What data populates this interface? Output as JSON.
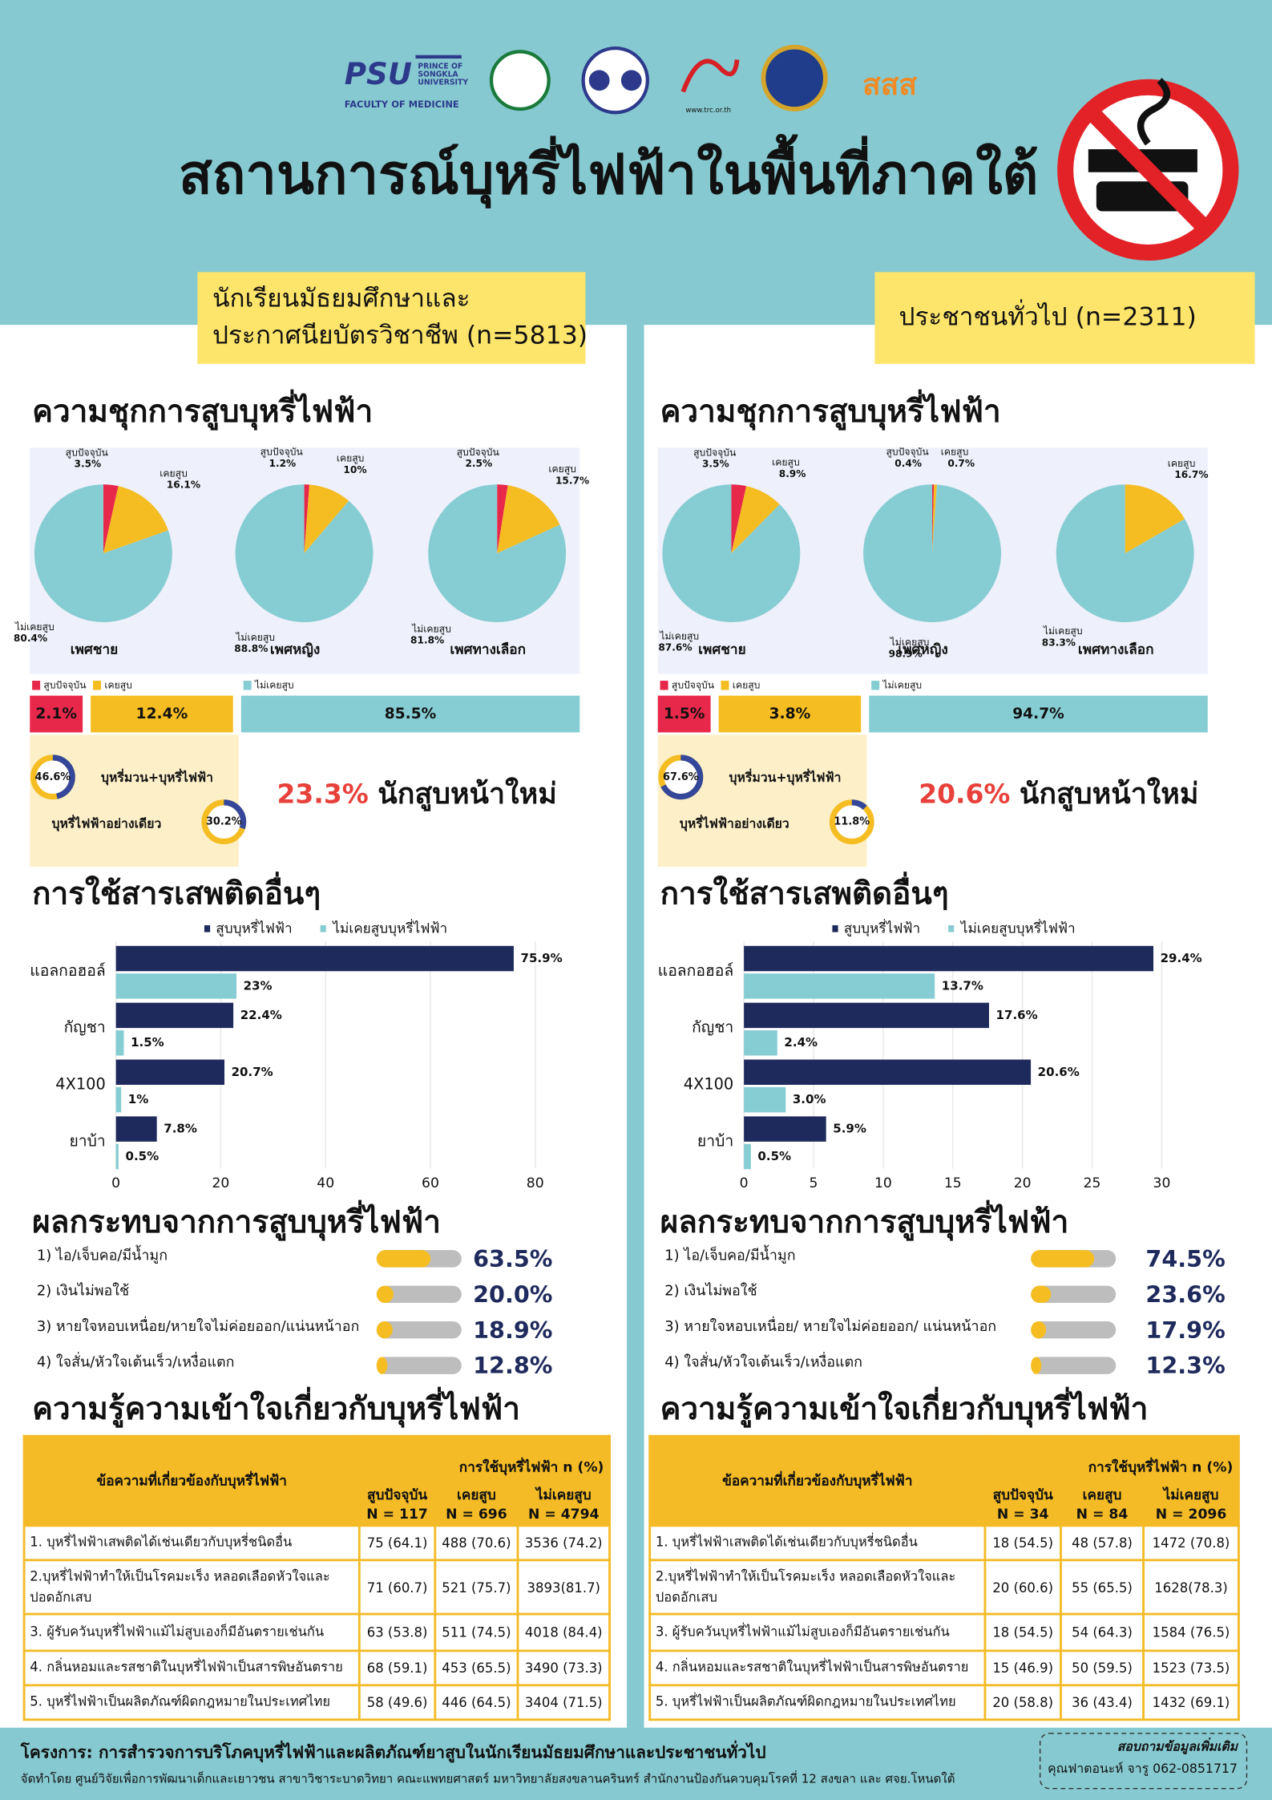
{
  "header": {
    "logos": {
      "psu": "PSU",
      "psu_name": [
        "PRINCE OF",
        "SONGKLA",
        "UNIVERSITY"
      ],
      "psu_faculty": "FACULTY OF MEDICINE",
      "trc": "www.trc.or.th",
      "thaihealth": "สสส"
    },
    "title": "สถานการณ์บุหรี่ไฟฟ้าในพื้นที่ภาคใต้"
  },
  "panels": [
    {
      "group": [
        "นักเรียนมัธยมศึกษาและ",
        "ประกาศนียบัตรวิชาชีพ (n=5813)"
      ],
      "prevalence": {
        "title": "ความชุกการสูบบุหรี่ไฟฟ้า",
        "type": "pie",
        "slice_labels": [
          "สูบปัจจุบัน",
          "เคยสูบ",
          "ไม่เคยสูบ"
        ],
        "colors": [
          "#e8284a",
          "#f5bd22",
          "#86cdd3"
        ],
        "pies": [
          {
            "name": "เพศชาย",
            "values": [
              3.5,
              16.1,
              80.4
            ],
            "value_labels": [
              "3.5%",
              "16.1%",
              "80.4%"
            ]
          },
          {
            "name": "เพศหญิง",
            "values": [
              1.2,
              10,
              88.8
            ],
            "value_labels": [
              "1.2%",
              "10%",
              "88.8%"
            ]
          },
          {
            "name": "เพศทางเลือก",
            "values": [
              2.5,
              15.7,
              81.8
            ],
            "value_labels": [
              "2.5%",
              "15.7%",
              "81.8%"
            ]
          }
        ],
        "overall": {
          "values": [
            2.1,
            12.4,
            85.5
          ],
          "value_labels": [
            "2.1%",
            "12.4%",
            "85.5%"
          ]
        }
      },
      "smoking_type": {
        "type": "donut",
        "color": "#34479a",
        "track_color": "#f5bd22",
        "items": [
          {
            "label": "บุหรี่มวน+บุหรี่ไฟฟ้า",
            "value": 46.6,
            "value_label": "46.6%"
          },
          {
            "label": "บุหรี่ไฟฟ้าอย่างเดียว",
            "value": 30.2,
            "value_label": "30.2%"
          }
        ]
      },
      "new_smokers": {
        "value": 23.3,
        "value_label": "23.3%",
        "label": "นักสูบหน้าใหม่"
      },
      "substances": {
        "title": "การใช้สารเสพติดอื่นๆ",
        "type": "bar",
        "categories": [
          "แอลกอฮอล์",
          "กัญชา",
          "4X100",
          "ยาบ้า"
        ],
        "series": [
          {
            "name": "สูบบุหรี่ไฟฟ้า",
            "color": "#1f2a5c",
            "values": [
              75.9,
              22.4,
              20.7,
              7.8
            ],
            "value_labels": [
              "75.9%",
              "22.4%",
              "20.7%",
              "7.8%"
            ]
          },
          {
            "name": "ไม่เคยสูบบุหรี่ไฟฟ้า",
            "color": "#86cdd3",
            "values": [
              23,
              1.5,
              1,
              0.5
            ],
            "value_labels": [
              "23%",
              "1.5%",
              "1%",
              "0.5%"
            ]
          }
        ],
        "xlim": [
          0,
          88.5
        ],
        "xticks": [
          0,
          20,
          40,
          60,
          80
        ],
        "grid": true
      },
      "effects": {
        "title": "ผลกระทบจากการสูบบุหรี่ไฟฟ้า",
        "type": "progress",
        "color": "#f5bd22",
        "track_color": "#bdbdbd",
        "xlim": [
          0,
          100
        ],
        "items": [
          {
            "label": "1) ไอ/เจ็บคอ/มีน้ำมูก",
            "value": 63.5,
            "value_label": "63.5%"
          },
          {
            "label": "2) เงินไม่พอใช้",
            "value": 20.0,
            "value_label": "20.0%"
          },
          {
            "label": "3) หายใจหอบเหนื่อย/หายใจไม่ค่อยออก/แน่นหน้าอก",
            "value": 18.9,
            "value_label": "18.9%"
          },
          {
            "label": "4) ใจสั่น/หัวใจเต้นเร็ว/เหงื่อแตก",
            "value": 12.8,
            "value_label": "12.8%"
          }
        ]
      },
      "knowledge": {
        "title": "ความรู้ความเข้าใจเกี่ยวกับบุหรี่ไฟฟ้า",
        "header_group": "การใช้บุหรี่ไฟฟ้า n (%)",
        "row_header": "ข้อความที่เกี่ยวข้องกับบุหรี่ไฟฟ้า",
        "columns": [
          [
            "สูบปัจจุบัน",
            "N = 117"
          ],
          [
            "เคยสูบ",
            "N = 696"
          ],
          [
            "ไม่เคยสูบ",
            "N = 4794"
          ]
        ],
        "rows": [
          [
            "1. บุหรี่ไฟฟ้าเสพติดได้เช่นเดียวกับบุหรี่ชนิดอื่น",
            "75 (64.1)",
            "488 (70.6)",
            "3536 (74.2)"
          ],
          [
            "2.บุหรี่ไฟฟ้าทำให้เป็นโรคมะเร็ง หลอดเลือดหัวใจและปอดอักเสบ",
            "71 (60.7)",
            "521 (75.7)",
            "3893(81.7)"
          ],
          [
            "3. ผู้รับควันบุหรี่ไฟฟ้าแม้ไม่สูบเองก็มีอันตรายเช่นกัน",
            "63 (53.8)",
            "511 (74.5)",
            "4018 (84.4)"
          ],
          [
            "4. กลิ่นหอมและรสชาติในบุหรี่ไฟฟ้าเป็นสารพิษอันตราย",
            "68 (59.1)",
            "453 (65.5)",
            "3490 (73.3)"
          ],
          [
            "5. บุหรี่ไฟฟ้าเป็นผลิตภัณฑ์ผิดกฎหมายในประเทศไทย",
            "58 (49.6)",
            "446 (64.5)",
            "3404 (71.5)"
          ]
        ]
      }
    },
    {
      "group": [
        "ประชาชนทั่วไป (n=2311)"
      ],
      "prevalence": {
        "title": "ความชุกการสูบบุหรี่ไฟฟ้า",
        "type": "pie",
        "slice_labels": [
          "สูบปัจจุบัน",
          "เคยสูบ",
          "ไม่เคยสูบ"
        ],
        "colors": [
          "#e8284a",
          "#f5bd22",
          "#86cdd3"
        ],
        "pies": [
          {
            "name": "เพศชาย",
            "values": [
              3.5,
              8.9,
              87.6
            ],
            "value_labels": [
              "3.5%",
              "8.9%",
              "87.6%"
            ]
          },
          {
            "name": "เพศหญิง",
            "values": [
              0.4,
              0.7,
              98.9
            ],
            "value_labels": [
              "0.4%",
              "0.7%",
              "98.9%"
            ]
          },
          {
            "name": "เพศทางเลือก",
            "values": [
              null,
              16.7,
              83.3
            ],
            "value_labels": [
              null,
              "16.7%",
              "83.3%"
            ]
          }
        ],
        "overall": {
          "values": [
            1.5,
            3.8,
            94.7
          ],
          "value_labels": [
            "1.5%",
            "3.8%",
            "94.7%"
          ]
        }
      },
      "smoking_type": {
        "type": "donut",
        "color": "#34479a",
        "track_color": "#f5bd22",
        "items": [
          {
            "label": "บุหรี่มวน+บุหรี่ไฟฟ้า",
            "value": 67.6,
            "value_label": "67.6%"
          },
          {
            "label": "บุหรี่ไฟฟ้าอย่างเดียว",
            "value": 11.8,
            "value_label": "11.8%"
          }
        ]
      },
      "new_smokers": {
        "value": 20.6,
        "value_label": "20.6%",
        "label": "นักสูบหน้าใหม่"
      },
      "substances": {
        "title": "การใช้สารเสพติดอื่นๆ",
        "type": "bar",
        "categories": [
          "แอลกอฮอล์",
          "กัญชา",
          "4X100",
          "ยาบ้า"
        ],
        "series": [
          {
            "name": "สูบบุหรี่ไฟฟ้า",
            "color": "#1f2a5c",
            "values": [
              29.4,
              17.6,
              20.6,
              5.9
            ],
            "value_labels": [
              "29.4%",
              "17.6%",
              "20.6%",
              "5.9%"
            ]
          },
          {
            "name": "ไม่เคยสูบบุหรี่ไฟฟ้า",
            "color": "#86cdd3",
            "values": [
              13.7,
              2.4,
              3.0,
              0.5
            ],
            "value_labels": [
              "13.7%",
              "2.4%",
              "3.0%",
              "0.5%"
            ]
          }
        ],
        "xlim": [
          0,
          33.3
        ],
        "xticks": [
          0,
          5,
          10,
          15,
          20,
          25,
          30
        ],
        "grid": true
      },
      "effects": {
        "title": "ผลกระทบจากการสูบบุหรี่ไฟฟ้า",
        "type": "progress",
        "color": "#f5bd22",
        "track_color": "#bdbdbd",
        "xlim": [
          0,
          100
        ],
        "items": [
          {
            "label": "1) ไอ/เจ็บคอ/มีน้ำมูก",
            "value": 74.5,
            "value_label": "74.5%"
          },
          {
            "label": "2) เงินไม่พอใช้",
            "value": 23.6,
            "value_label": "23.6%"
          },
          {
            "label": "3) หายใจหอบเหนื่อย/ หายใจไม่ค่อยออก/ แน่นหน้าอก",
            "value": 17.9,
            "value_label": "17.9%"
          },
          {
            "label": "4) ใจสั่น/หัวใจเต้นเร็ว/เหงื่อแตก",
            "value": 12.3,
            "value_label": "12.3%"
          }
        ]
      },
      "knowledge": {
        "title": "ความรู้ความเข้าใจเกี่ยวกับบุหรี่ไฟฟ้า",
        "header_group": "การใช้บุหรี่ไฟฟ้า n (%)",
        "row_header": "ข้อความที่เกี่ยวข้องกับบุหรี่ไฟฟ้า",
        "columns": [
          [
            "สูบปัจจุบัน",
            "N = 34"
          ],
          [
            "เคยสูบ",
            "N = 84"
          ],
          [
            "ไม่เคยสูบ",
            "N = 2096"
          ]
        ],
        "rows": [
          [
            "1. บุหรี่ไฟฟ้าเสพติดได้เช่นเดียวกับบุหรี่ชนิดอื่น",
            "18 (54.5)",
            "48 (57.8)",
            "1472 (70.8)"
          ],
          [
            "2.บุหรี่ไฟฟ้าทำให้เป็นโรคมะเร็ง หลอดเลือดหัวใจและปอดอักเสบ",
            "20 (60.6)",
            "55 (65.5)",
            "1628(78.3)"
          ],
          [
            "3. ผู้รับควันบุหรี่ไฟฟ้าแม้ไม่สูบเองก็มีอันตรายเช่นกัน",
            "18 (54.5)",
            "54 (64.3)",
            "1584 (76.5)"
          ],
          [
            "4. กลิ่นหอมและรสชาติในบุหรี่ไฟฟ้าเป็นสารพิษอันตราย",
            "15 (46.9)",
            "50 (59.5)",
            "1523 (73.5)"
          ],
          [
            "5. บุหรี่ไฟฟ้าเป็นผลิตภัณฑ์ผิดกฎหมายในประเทศไทย",
            "20 (58.8)",
            "36 (43.4)",
            "1432 (69.1)"
          ]
        ]
      }
    }
  ],
  "footer": {
    "project": "โครงการ: การสำรวจการบริโภคบุหรี่ไฟฟ้าและผลิตภัณฑ์ยาสูบในนักเรียนมัธยมศึกษาและประชาชนทั่วไป",
    "credit": "จัดทำโดย ศูนย์วิจัยเพื่อการพัฒนาเด็กและเยาวชน สาขาวิชาระบาดวิทยา คณะแพทยศาสตร์ มหาวิทยาลัยสงขลานครินทร์ สำนักงานป้องกันควบคุมโรคที่ 12 สงขลา และ ศจย.โหนดใต้",
    "contact_title": "สอบถามข้อมูลเพิ่มเติม",
    "contact": "คุณฟาตอนะห์ จารู 062-0851717"
  }
}
